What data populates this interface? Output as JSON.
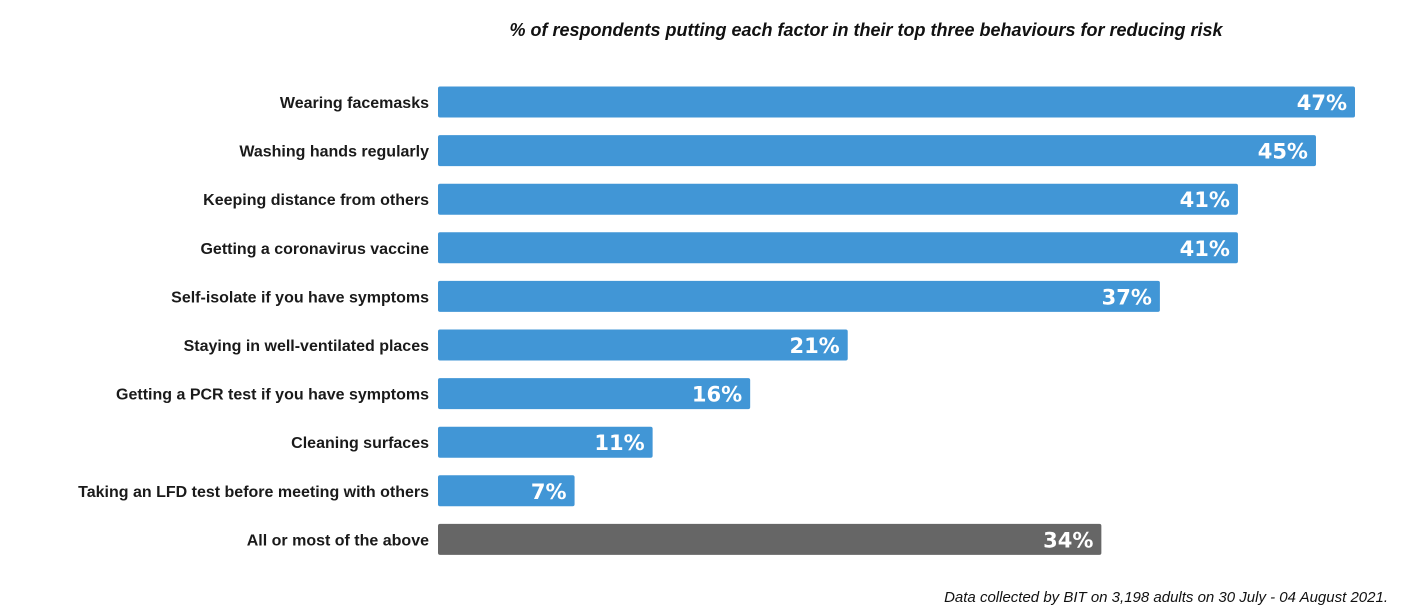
{
  "chart_data": {
    "type": "bar",
    "orientation": "horizontal",
    "title": "% of respondents putting each factor in their top three behaviours for reducing risk",
    "categories": [
      "Wearing facemasks",
      "Washing hands regularly",
      "Keeping distance from others",
      "Getting a coronavirus vaccine",
      "Self-isolate if you have symptoms",
      "Staying in well-ventilated places",
      "Getting a PCR test if you have symptoms",
      "Cleaning surfaces",
      "Taking an LFD test before meeting with others",
      "All or most of the above"
    ],
    "values": [
      47,
      45,
      41,
      41,
      37,
      21,
      16,
      11,
      7,
      34
    ],
    "value_labels": [
      "47%",
      "45%",
      "41%",
      "41%",
      "37%",
      "21%",
      "16%",
      "11%",
      "7%",
      "34%"
    ],
    "bar_colors": [
      "#4196d6",
      "#4196d6",
      "#4196d6",
      "#4196d6",
      "#4196d6",
      "#4196d6",
      "#4196d6",
      "#4196d6",
      "#4196d6",
      "#666666"
    ],
    "xlim": [
      0,
      47
    ],
    "grid": false,
    "legend": "none"
  },
  "footnote": "Data collected by BIT on 3,198 adults on 30 July - 04 August 2021."
}
